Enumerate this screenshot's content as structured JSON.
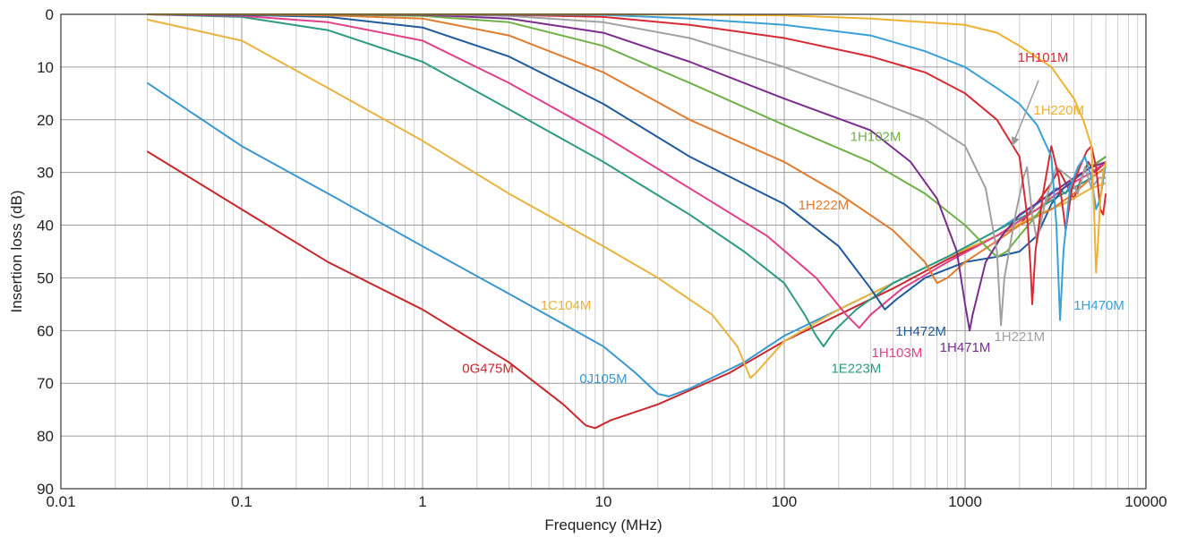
{
  "chart_data": {
    "type": "line",
    "x_scale": "log",
    "y_inverted": true,
    "grid": true,
    "xlabel": "Frequency (MHz)",
    "ylabel": "Insertion loss (dB)",
    "xlim": [
      0.01,
      10000
    ],
    "ylim": [
      0,
      90
    ],
    "x_ticks": [
      0.01,
      0.1,
      1,
      10,
      100,
      1000,
      10000
    ],
    "x_tick_labels": [
      "0.01",
      "0.1",
      "1",
      "10",
      "100",
      "1000",
      "10000"
    ],
    "y_ticks": [
      0,
      10,
      20,
      30,
      40,
      50,
      60,
      70,
      80,
      90
    ],
    "y_tick_labels": [
      "0",
      "10",
      "20",
      "30",
      "40",
      "50",
      "60",
      "70",
      "80",
      "90"
    ],
    "series": [
      {
        "name": "0G475M",
        "color": "#c8282d",
        "points": [
          [
            0.03,
            26
          ],
          [
            0.1,
            37
          ],
          [
            0.3,
            47
          ],
          [
            1,
            56
          ],
          [
            3,
            66
          ],
          [
            6,
            74
          ],
          [
            8,
            78
          ],
          [
            9,
            78.5
          ],
          [
            11,
            77
          ],
          [
            20,
            74
          ],
          [
            50,
            68
          ],
          [
            100,
            62
          ],
          [
            200,
            57
          ],
          [
            400,
            52
          ],
          [
            800,
            46.5
          ],
          [
            1500,
            42
          ],
          [
            2000,
            40
          ],
          [
            2600,
            35
          ],
          [
            3000,
            32
          ],
          [
            3300,
            29.5
          ],
          [
            3600,
            32
          ],
          [
            4000,
            35
          ],
          [
            4400,
            31
          ],
          [
            4800,
            28
          ],
          [
            5200,
            30
          ],
          [
            5600,
            29
          ],
          [
            6000,
            28
          ]
        ],
        "label": {
          "text": "0G475M",
          "x": 2.3,
          "y": 68
        }
      },
      {
        "name": "0J105M",
        "color": "#3a97cf",
        "points": [
          [
            0.03,
            13
          ],
          [
            0.1,
            25
          ],
          [
            0.3,
            34
          ],
          [
            1,
            44
          ],
          [
            3,
            53
          ],
          [
            10,
            63
          ],
          [
            15,
            68
          ],
          [
            20,
            72
          ],
          [
            23,
            72.5
          ],
          [
            30,
            71
          ],
          [
            60,
            66
          ],
          [
            100,
            61
          ],
          [
            200,
            56
          ],
          [
            400,
            51
          ],
          [
            800,
            46
          ],
          [
            1500,
            41
          ],
          [
            2500,
            36
          ],
          [
            3200,
            33
          ],
          [
            3600,
            34
          ],
          [
            4000,
            31
          ],
          [
            5000,
            29
          ],
          [
            6000,
            27
          ]
        ],
        "label": {
          "text": "0J105M",
          "x": 10,
          "y": 70
        }
      },
      {
        "name": "1C104M",
        "color": "#e8b33e",
        "points": [
          [
            0.03,
            1
          ],
          [
            0.1,
            5
          ],
          [
            0.3,
            14
          ],
          [
            1,
            24
          ],
          [
            3,
            34
          ],
          [
            10,
            44
          ],
          [
            20,
            50
          ],
          [
            40,
            57
          ],
          [
            55,
            63
          ],
          [
            65,
            69
          ],
          [
            70,
            68
          ],
          [
            100,
            62
          ],
          [
            200,
            56
          ],
          [
            400,
            51
          ],
          [
            800,
            46
          ],
          [
            1500,
            42
          ],
          [
            2500,
            38
          ],
          [
            3500,
            36
          ],
          [
            5000,
            33
          ],
          [
            6000,
            32
          ]
        ],
        "label": {
          "text": "1C104M",
          "x": 6.2,
          "y": 56
        }
      },
      {
        "name": "1E223M",
        "color": "#2e9a82",
        "points": [
          [
            0.03,
            0
          ],
          [
            0.1,
            0.5
          ],
          [
            0.3,
            3
          ],
          [
            1,
            9
          ],
          [
            3,
            18
          ],
          [
            10,
            28
          ],
          [
            30,
            38
          ],
          [
            60,
            45
          ],
          [
            100,
            51
          ],
          [
            130,
            57
          ],
          [
            150,
            61
          ],
          [
            165,
            63
          ],
          [
            190,
            60
          ],
          [
            250,
            56
          ],
          [
            400,
            51
          ],
          [
            800,
            46
          ],
          [
            1500,
            41
          ],
          [
            2500,
            37
          ],
          [
            3500,
            34
          ],
          [
            5000,
            31
          ],
          [
            6000,
            29
          ]
        ],
        "label": {
          "text": "1E223M",
          "x": 250,
          "y": 68
        }
      },
      {
        "name": "1H103M",
        "color": "#e0408a",
        "points": [
          [
            0.03,
            0
          ],
          [
            0.1,
            0.3
          ],
          [
            0.3,
            1.5
          ],
          [
            1,
            5
          ],
          [
            3,
            13
          ],
          [
            10,
            23
          ],
          [
            30,
            33
          ],
          [
            80,
            42
          ],
          [
            150,
            50
          ],
          [
            220,
            57
          ],
          [
            260,
            59.5
          ],
          [
            300,
            57
          ],
          [
            450,
            52
          ],
          [
            800,
            47
          ],
          [
            1500,
            42
          ],
          [
            2500,
            37
          ],
          [
            3500,
            33
          ],
          [
            5000,
            30
          ],
          [
            6000,
            28
          ]
        ],
        "label": {
          "text": "1H103M",
          "x": 420,
          "y": 65
        }
      },
      {
        "name": "1H472M",
        "color": "#1f5a9a",
        "points": [
          [
            0.03,
            0
          ],
          [
            0.1,
            0.1
          ],
          [
            0.3,
            0.5
          ],
          [
            1,
            2.5
          ],
          [
            3,
            8
          ],
          [
            10,
            17
          ],
          [
            30,
            27
          ],
          [
            100,
            36
          ],
          [
            200,
            44
          ],
          [
            300,
            52
          ],
          [
            360,
            56
          ],
          [
            420,
            54
          ],
          [
            600,
            50
          ],
          [
            1000,
            47
          ],
          [
            1500,
            46
          ],
          [
            2000,
            45
          ],
          [
            2500,
            42
          ],
          [
            3000,
            36
          ],
          [
            3500,
            33
          ],
          [
            4500,
            30
          ],
          [
            6000,
            27
          ]
        ],
        "label": {
          "text": "1H472M",
          "x": 570,
          "y": 61
        }
      },
      {
        "name": "1H222M",
        "color": "#e07c30",
        "points": [
          [
            0.03,
            0
          ],
          [
            0.1,
            0
          ],
          [
            0.3,
            0.2
          ],
          [
            1,
            0.8
          ],
          [
            3,
            4
          ],
          [
            10,
            11
          ],
          [
            30,
            20
          ],
          [
            100,
            28
          ],
          [
            200,
            34
          ],
          [
            400,
            41
          ],
          [
            600,
            47
          ],
          [
            700,
            51
          ],
          [
            800,
            50
          ],
          [
            1000,
            47
          ],
          [
            1500,
            43
          ],
          [
            2000,
            40
          ],
          [
            3000,
            37
          ],
          [
            4000,
            34
          ],
          [
            5000,
            31
          ],
          [
            6000,
            29
          ]
        ],
        "label": {
          "text": "1H222M",
          "x": 165,
          "y": 37
        }
      },
      {
        "name": "1H102M",
        "color": "#6fb048",
        "points": [
          [
            0.03,
            0
          ],
          [
            0.3,
            0
          ],
          [
            1,
            0.3
          ],
          [
            3,
            1.5
          ],
          [
            10,
            6
          ],
          [
            30,
            13
          ],
          [
            100,
            21
          ],
          [
            300,
            28
          ],
          [
            600,
            34
          ],
          [
            1000,
            40
          ],
          [
            1300,
            44
          ],
          [
            1500,
            46
          ],
          [
            1700,
            45
          ],
          [
            2000,
            42
          ],
          [
            2500,
            38
          ],
          [
            3000,
            34
          ],
          [
            4000,
            31
          ],
          [
            5000,
            29
          ],
          [
            6000,
            27
          ]
        ],
        "label": {
          "text": "1H102M",
          "x": 320,
          "y": 24
        }
      },
      {
        "name": "1H471M",
        "color": "#7a2d8c",
        "points": [
          [
            0.03,
            0
          ],
          [
            0.3,
            0
          ],
          [
            1,
            0.1
          ],
          [
            3,
            0.8
          ],
          [
            10,
            3.5
          ],
          [
            30,
            9
          ],
          [
            100,
            16
          ],
          [
            300,
            22
          ],
          [
            500,
            28
          ],
          [
            700,
            35
          ],
          [
            900,
            45
          ],
          [
            1000,
            55
          ],
          [
            1060,
            60
          ],
          [
            1100,
            57
          ],
          [
            1300,
            47
          ],
          [
            1600,
            42
          ],
          [
            2000,
            38
          ],
          [
            3000,
            34
          ],
          [
            4000,
            31
          ],
          [
            5000,
            29
          ],
          [
            6000,
            28
          ]
        ],
        "label": {
          "text": "1H471M",
          "x": 1000,
          "y": 64
        }
      },
      {
        "name": "1H221M",
        "color": "#a0a0a0",
        "points": [
          [
            0.03,
            0
          ],
          [
            0.3,
            0
          ],
          [
            1,
            0
          ],
          [
            3,
            0.3
          ],
          [
            10,
            1.5
          ],
          [
            30,
            4.5
          ],
          [
            100,
            10
          ],
          [
            300,
            16
          ],
          [
            600,
            20
          ],
          [
            1000,
            25
          ],
          [
            1300,
            33
          ],
          [
            1500,
            45
          ],
          [
            1580,
            59
          ],
          [
            1650,
            50
          ],
          [
            1900,
            38
          ],
          [
            2100,
            31
          ],
          [
            2200,
            29
          ],
          [
            2350,
            38
          ],
          [
            2500,
            43
          ],
          [
            2800,
            35
          ],
          [
            3200,
            29
          ],
          [
            3800,
            31
          ],
          [
            4200,
            34
          ],
          [
            4600,
            29
          ],
          [
            5000,
            33
          ],
          [
            5500,
            31
          ],
          [
            6000,
            31
          ]
        ],
        "label": {
          "text": "1H221M",
          "x": 2000,
          "y": 62
        }
      },
      {
        "name": "1H101M",
        "color": "#d62a35",
        "points": [
          [
            0.03,
            0
          ],
          [
            0.3,
            0
          ],
          [
            1,
            0
          ],
          [
            3,
            0.1
          ],
          [
            10,
            0.5
          ],
          [
            30,
            2
          ],
          [
            100,
            4.5
          ],
          [
            300,
            8
          ],
          [
            600,
            11
          ],
          [
            1000,
            15
          ],
          [
            1500,
            20
          ],
          [
            2000,
            27
          ],
          [
            2200,
            38
          ],
          [
            2300,
            48
          ],
          [
            2350,
            55
          ],
          [
            2450,
            45
          ],
          [
            2700,
            34
          ],
          [
            3000,
            25
          ],
          [
            3300,
            31
          ],
          [
            3600,
            41
          ],
          [
            3900,
            33
          ],
          [
            4300,
            29
          ],
          [
            4700,
            26
          ],
          [
            5000,
            25
          ],
          [
            5300,
            29
          ],
          [
            5600,
            37
          ],
          [
            5800,
            38
          ],
          [
            6000,
            34
          ]
        ],
        "label": {
          "text": "1H101M",
          "x": 2700,
          "y": 9
        }
      },
      {
        "name": "1H470M",
        "color": "#3aa0d8",
        "points": [
          [
            0.03,
            0
          ],
          [
            0.3,
            0
          ],
          [
            1,
            0
          ],
          [
            10,
            0.1
          ],
          [
            30,
            0.8
          ],
          [
            100,
            2
          ],
          [
            300,
            4
          ],
          [
            600,
            7
          ],
          [
            1000,
            10
          ],
          [
            1500,
            14
          ],
          [
            2000,
            17
          ],
          [
            2500,
            21
          ],
          [
            3000,
            27
          ],
          [
            3200,
            40
          ],
          [
            3350,
            58
          ],
          [
            3500,
            45
          ],
          [
            3800,
            33
          ],
          [
            4200,
            29
          ],
          [
            4600,
            27
          ],
          [
            5000,
            31
          ],
          [
            5300,
            37
          ],
          [
            5600,
            35
          ],
          [
            6000,
            28
          ]
        ],
        "label": {
          "text": "1H470M",
          "x": 5500,
          "y": 56
        }
      },
      {
        "name": "1H220M",
        "color": "#f0b030",
        "points": [
          [
            0.03,
            0
          ],
          [
            1,
            0
          ],
          [
            10,
            0
          ],
          [
            100,
            0.2
          ],
          [
            300,
            0.8
          ],
          [
            1000,
            2
          ],
          [
            1500,
            3.5
          ],
          [
            2000,
            6
          ],
          [
            3000,
            10
          ],
          [
            4000,
            16
          ],
          [
            4500,
            20
          ],
          [
            5000,
            25
          ],
          [
            5200,
            40
          ],
          [
            5300,
            49
          ],
          [
            5400,
            45
          ],
          [
            5600,
            35
          ],
          [
            5800,
            30
          ],
          [
            6000,
            28
          ]
        ],
        "label": {
          "text": "1H220M",
          "x": 3300,
          "y": 19
        }
      }
    ],
    "pointer_arrow": {
      "from_x": 2550,
      "from_y": 12.5,
      "to_x": 1820,
      "to_y": 25
    }
  }
}
